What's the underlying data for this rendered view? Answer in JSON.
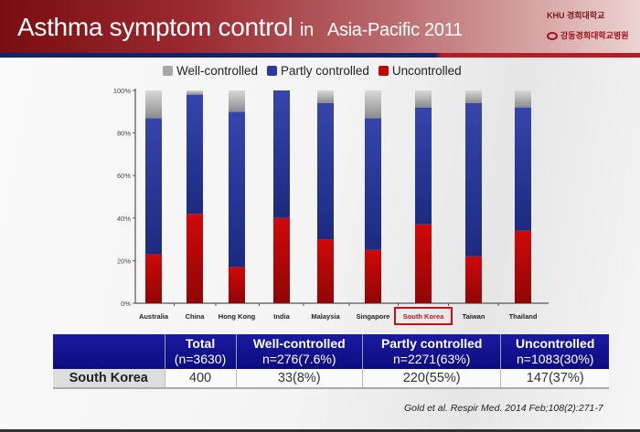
{
  "header": {
    "title_main": "Asthma symptom control",
    "title_in": "in",
    "title_rest": "Asia-Pacific 2011",
    "logo1_text": "KHU 경희대학교",
    "logo2_text": "강동경희대학교병원"
  },
  "colors": {
    "well": "#a8a8a8",
    "partly": "#2b3a9c",
    "uncontrolled": "#c00a0a",
    "highlight": "#c8101a"
  },
  "chart_data": {
    "type": "bar",
    "stacked": true,
    "categories": [
      "Australia",
      "China",
      "Hong Kong",
      "India",
      "Malaysia",
      "Singapore",
      "South Korea",
      "Taiwan",
      "Thailand"
    ],
    "highlighted_category": "South Korea",
    "series": [
      {
        "name": "Uncontrolled",
        "values": [
          23,
          42,
          17,
          40,
          30,
          25,
          37,
          22,
          34
        ]
      },
      {
        "name": "Partly controlled",
        "values": [
          64,
          56,
          73,
          60,
          64,
          62,
          55,
          72,
          58
        ]
      },
      {
        "name": "Well-controlled",
        "values": [
          13,
          2,
          10,
          0,
          6,
          13,
          8,
          6,
          8
        ]
      }
    ],
    "legend_order": [
      "Well-controlled",
      "Partly controlled",
      "Uncontrolled"
    ],
    "legend": "top",
    "yticks": [
      "0%",
      "20%",
      "40%",
      "60%",
      "80%",
      "100%"
    ],
    "ylim": [
      0,
      100
    ],
    "grid": false
  },
  "table": {
    "headers": [
      {
        "l1": "",
        "l2": ""
      },
      {
        "l1": "Total",
        "l2": "(n=3630)"
      },
      {
        "l1": "Well-controlled",
        "l2": "n=276(7.6%)"
      },
      {
        "l1": "Partly controlled",
        "l2": "n=2271(63%)"
      },
      {
        "l1": "Uncontrolled",
        "l2": "n=1083(30%)"
      }
    ],
    "row": [
      "South Korea",
      "400",
      "33(8%)",
      "220(55%)",
      "147(37%)"
    ]
  },
  "citation": "Gold et al. Respir Med. 2014 Feb;108(2):271-7"
}
